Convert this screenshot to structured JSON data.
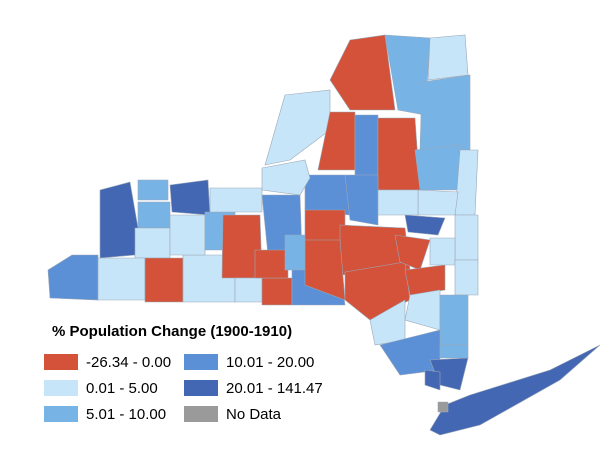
{
  "title": "% Population Change (1900-1910)",
  "legend": [
    {
      "label": "-26.34 - 0.00",
      "color": "#d35239"
    },
    {
      "label": "0.01 - 5.00",
      "color": "#c7e5f8"
    },
    {
      "label": "5.01 - 10.00",
      "color": "#78b3e6"
    },
    {
      "label": "10.01 - 20.00",
      "color": "#5b8fd6"
    },
    {
      "label": "20.01 - 141.47",
      "color": "#4467b3"
    },
    {
      "label": "No Data",
      "color": "#9a9a9a"
    }
  ]
}
